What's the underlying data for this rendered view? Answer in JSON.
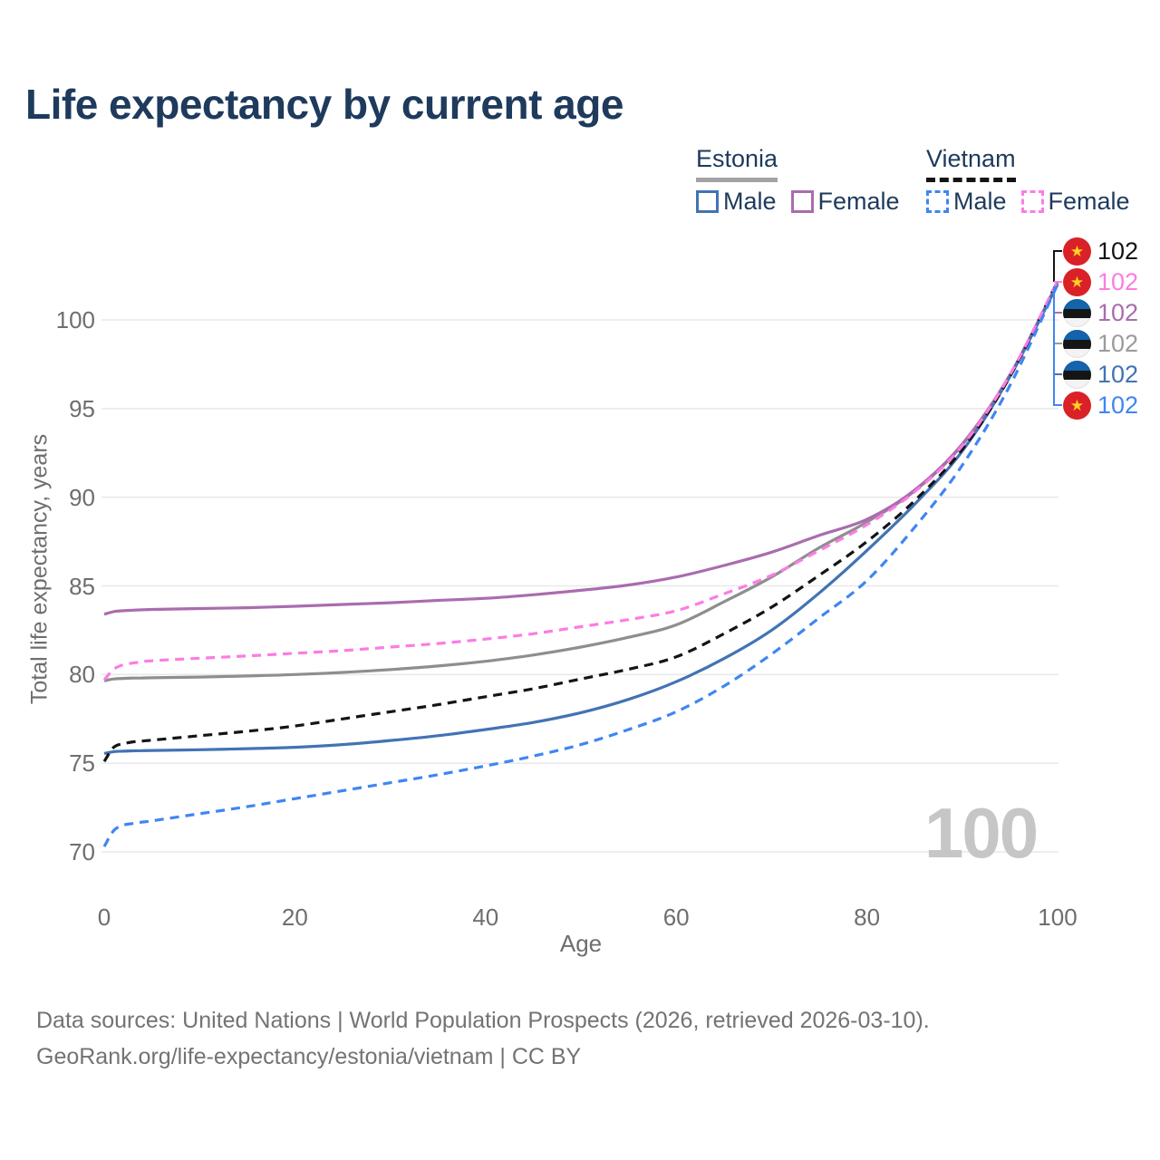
{
  "title": "Life expectancy by current age",
  "legend": {
    "estonia": {
      "country": "Estonia",
      "male": "Male",
      "female": "Female"
    },
    "vietnam": {
      "country": "Vietnam",
      "male": "Male",
      "female": "Female"
    }
  },
  "colors": {
    "title_navy": "#1e3a5c",
    "axis_gray": "#6e6e6e",
    "grid": "#e9e9e9",
    "watermark_gray": "#c6c6c6",
    "estonia_total": "#8e8e8e",
    "estonia_male": "#4273b4",
    "estonia_female": "#aa6cae",
    "vietnam_total": "#141414",
    "vietnam_male": "#3f86f2",
    "vietnam_female": "#fc7ce3",
    "estonia_flag_blue": "#1463ad",
    "vietnam_flag_red": "#da2127",
    "vietnam_flag_star": "#ffd21e"
  },
  "chart_data": {
    "type": "line",
    "title": "Life expectancy by current age",
    "xlabel": "Age",
    "ylabel": "Total life expectancy, years",
    "xlim": [
      0,
      100
    ],
    "ylim": [
      69.5,
      103
    ],
    "xticks": [
      0,
      20,
      40,
      60,
      80,
      100
    ],
    "yticks": [
      70,
      75,
      80,
      85,
      90,
      95,
      100
    ],
    "grid": "horizontal",
    "legend_position": "top-right",
    "x": [
      0,
      1,
      2,
      3,
      4,
      5,
      10,
      15,
      20,
      25,
      30,
      35,
      40,
      45,
      50,
      55,
      60,
      65,
      70,
      75,
      80,
      85,
      90,
      95,
      100
    ],
    "series": [
      {
        "name": "Estonia",
        "country": "Estonia",
        "sex": "Total",
        "color": "#8e8e8e",
        "dashed": false,
        "values": [
          79.65,
          79.75,
          79.78,
          79.8,
          79.81,
          79.82,
          79.86,
          79.92,
          80.0,
          80.12,
          80.28,
          80.48,
          80.75,
          81.1,
          81.55,
          82.1,
          82.8,
          84.1,
          85.5,
          87.15,
          88.6,
          90.35,
          92.95,
          96.9,
          102.1
        ]
      },
      {
        "name": "Estonia Female",
        "country": "Estonia",
        "sex": "Female",
        "color": "#aa6cae",
        "dashed": false,
        "values": [
          83.4,
          83.55,
          83.6,
          83.63,
          83.65,
          83.67,
          83.72,
          83.77,
          83.85,
          83.95,
          84.05,
          84.18,
          84.3,
          84.5,
          84.75,
          85.05,
          85.5,
          86.15,
          86.9,
          87.85,
          88.75,
          90.4,
          93.0,
          96.9,
          102.1
        ]
      },
      {
        "name": "Estonia Male",
        "country": "Estonia",
        "sex": "Male",
        "color": "#4273b4",
        "dashed": false,
        "values": [
          75.55,
          75.65,
          75.68,
          75.7,
          75.71,
          75.72,
          75.76,
          75.82,
          75.9,
          76.05,
          76.28,
          76.55,
          76.9,
          77.3,
          77.85,
          78.6,
          79.6,
          80.9,
          82.5,
          84.6,
          87.0,
          89.6,
          92.6,
          96.8,
          102.0
        ]
      },
      {
        "name": "Vietnam",
        "country": "Vietnam",
        "sex": "Total",
        "color": "#141414",
        "dashed": true,
        "values": [
          75.1,
          75.9,
          76.1,
          76.2,
          76.25,
          76.3,
          76.55,
          76.8,
          77.1,
          77.5,
          77.9,
          78.3,
          78.75,
          79.2,
          79.75,
          80.3,
          81.0,
          82.3,
          83.8,
          85.6,
          87.5,
          89.8,
          92.7,
          96.8,
          102.2
        ]
      },
      {
        "name": "Vietnam Female",
        "country": "Vietnam",
        "sex": "Female",
        "color": "#fc7ce3",
        "dashed": true,
        "values": [
          79.7,
          80.3,
          80.55,
          80.65,
          80.72,
          80.78,
          80.92,
          81.05,
          81.2,
          81.35,
          81.55,
          81.75,
          82.0,
          82.3,
          82.7,
          83.1,
          83.6,
          84.55,
          85.6,
          87.0,
          88.45,
          90.3,
          92.9,
          96.9,
          102.2
        ]
      },
      {
        "name": "Vietnam Male",
        "country": "Vietnam",
        "sex": "Male",
        "color": "#3f86f2",
        "dashed": true,
        "values": [
          70.3,
          71.2,
          71.5,
          71.6,
          71.68,
          71.75,
          72.15,
          72.55,
          73.0,
          73.45,
          73.9,
          74.35,
          74.85,
          75.4,
          76.05,
          76.9,
          77.9,
          79.35,
          81.15,
          83.2,
          85.3,
          88.3,
          91.8,
          96.3,
          102.0
        ]
      }
    ],
    "end_labels": [
      {
        "series": "Vietnam",
        "flag": "vietnam-flag",
        "value": "102",
        "color": "#141414"
      },
      {
        "series": "Vietnam Female",
        "flag": "vietnam-flag",
        "value": "102",
        "color": "#fc7ce3"
      },
      {
        "series": "Estonia Female",
        "flag": "estonia-flag",
        "value": "102",
        "color": "#aa6cae"
      },
      {
        "series": "Estonia",
        "flag": "estonia-flag",
        "value": "102",
        "color": "#9b9b9b"
      },
      {
        "series": "Estonia Male",
        "flag": "estonia-flag",
        "value": "102",
        "color": "#4273b4"
      },
      {
        "series": "Vietnam Male",
        "flag": "vietnam-flag",
        "value": "102",
        "color": "#3f86f2"
      }
    ]
  },
  "watermark": "100",
  "footer": {
    "line1": "Data sources: United Nations | World Population Prospects (2026, retrieved 2026-03-10).",
    "line2": "GeoRank.org/life-expectancy/estonia/vietnam | CC BY"
  }
}
